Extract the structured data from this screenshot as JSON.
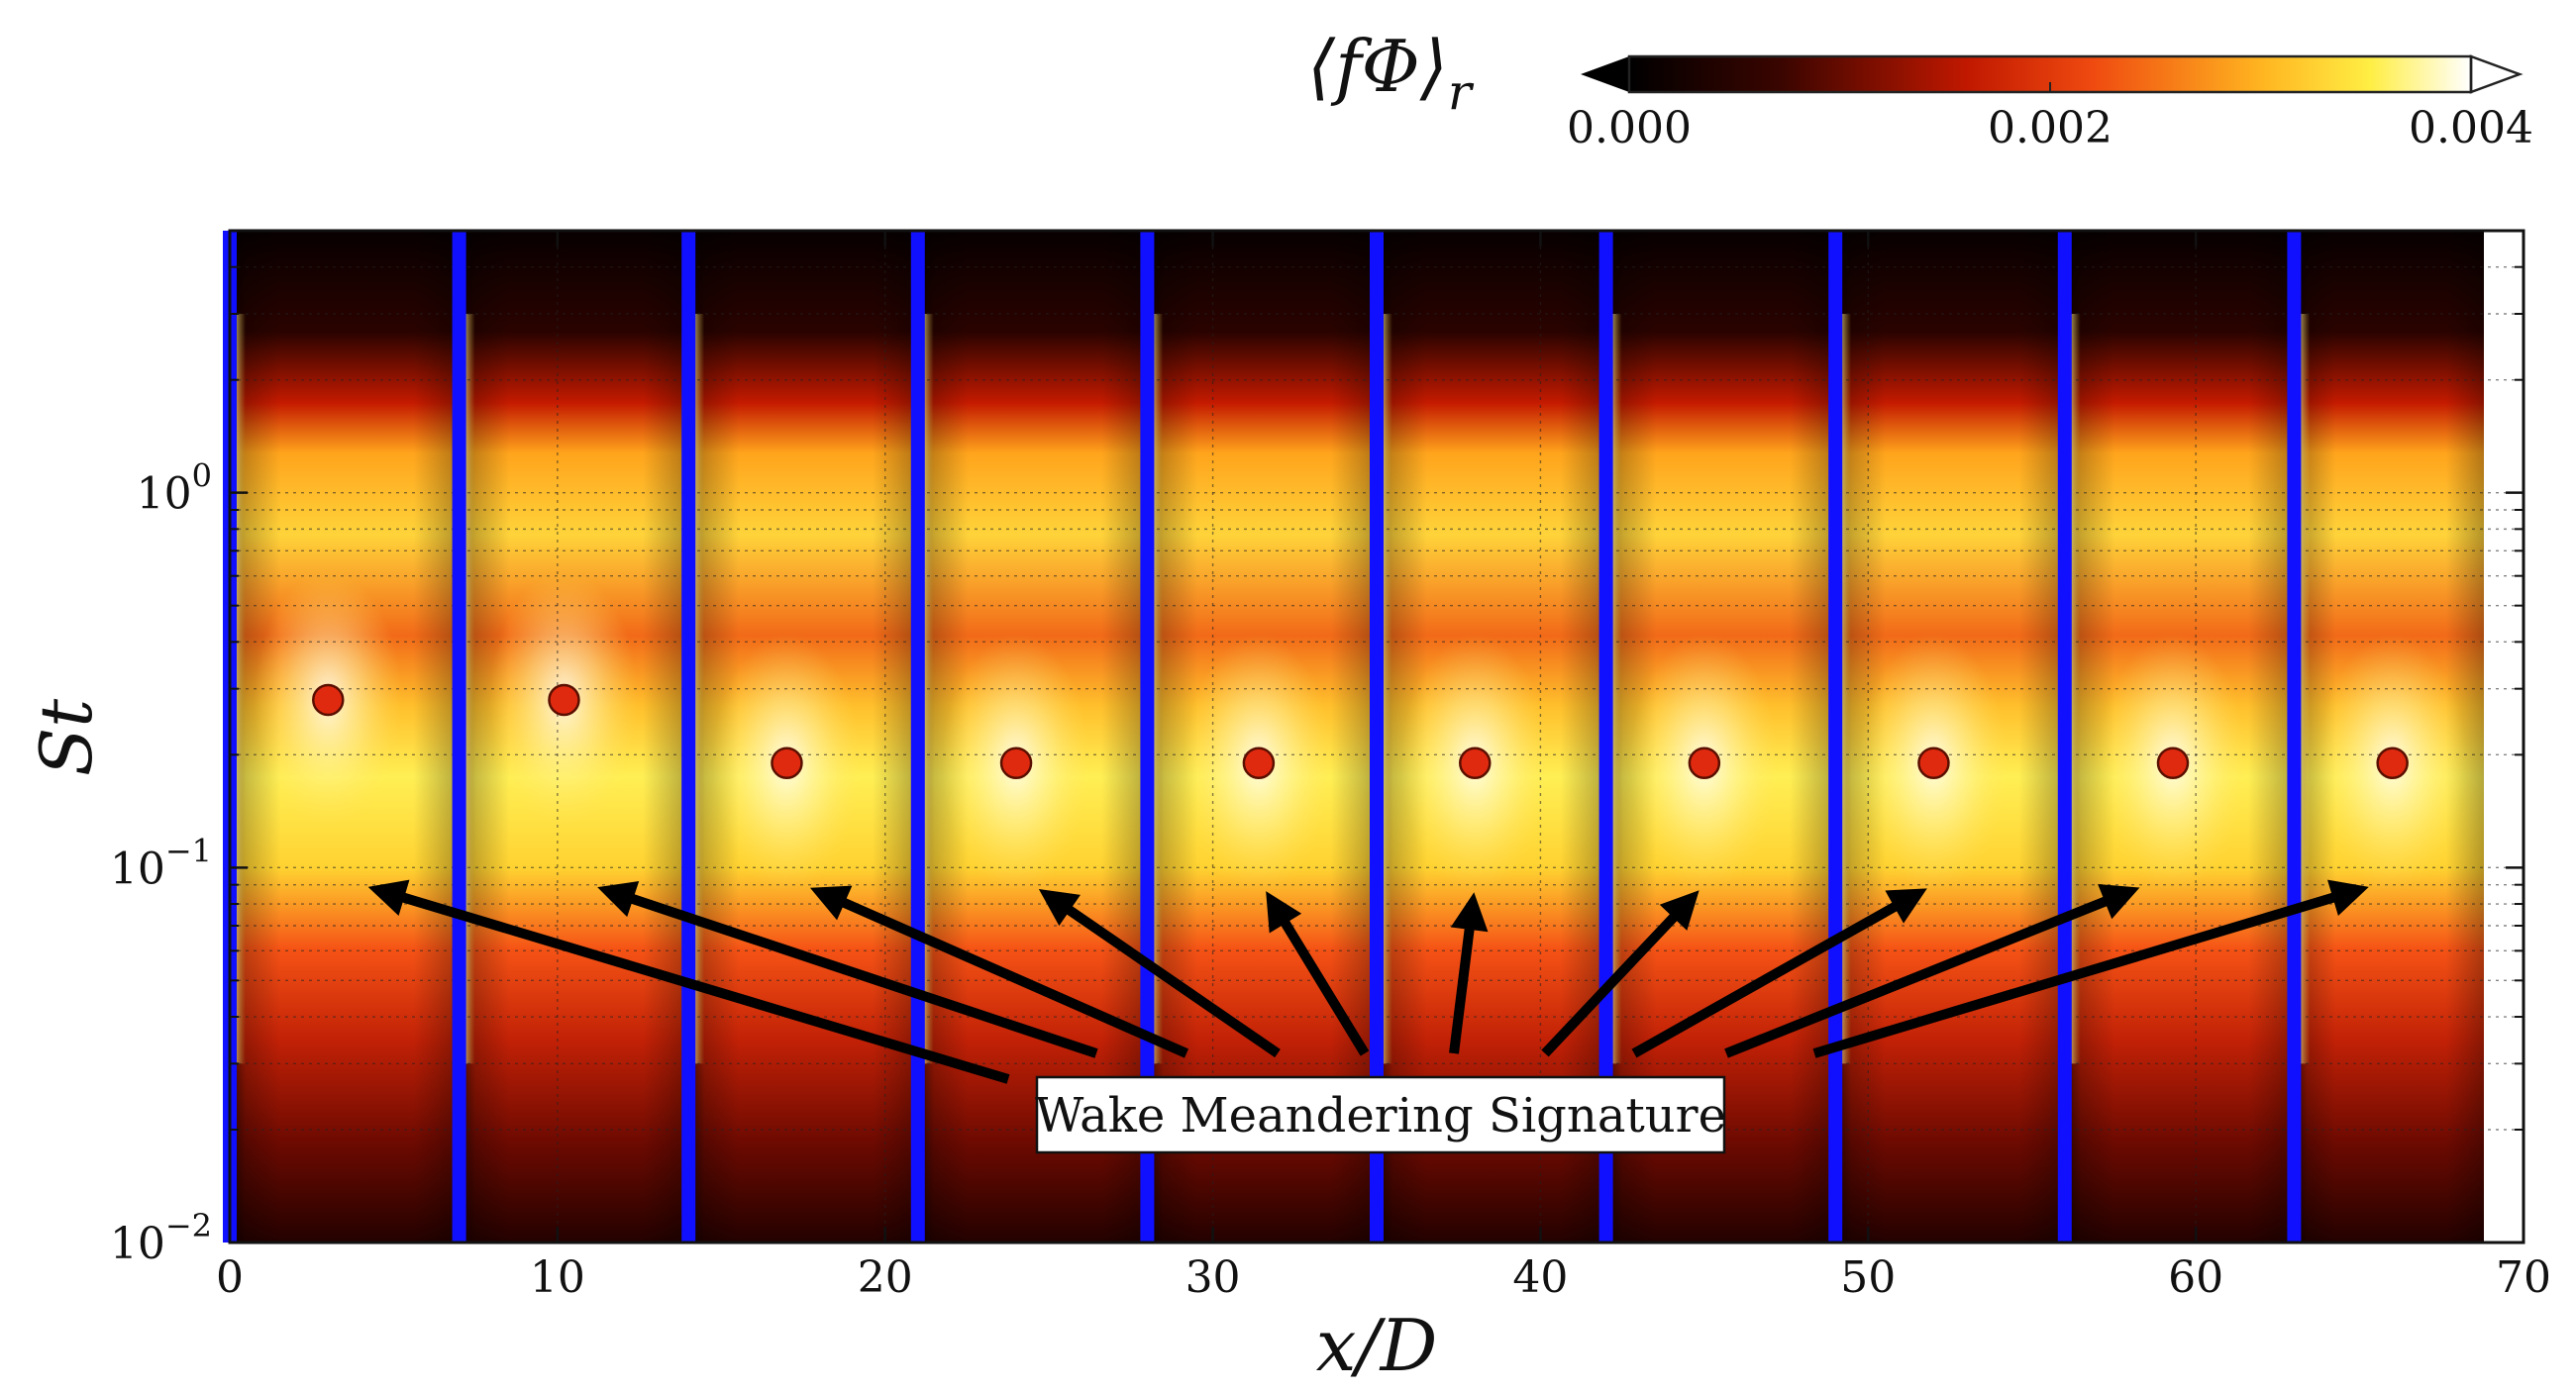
{
  "chart_data": {
    "type": "heatmap",
    "title": "",
    "xlabel": "x/D",
    "ylabel": "St",
    "xlim": [
      0,
      70
    ],
    "ylim": [
      0.01,
      5
    ],
    "yscale": "log",
    "x_ticks": [
      0,
      10,
      20,
      30,
      40,
      50,
      60,
      70
    ],
    "x_tick_labels": [
      "0",
      "10",
      "20",
      "30",
      "40",
      "50",
      "60",
      "70"
    ],
    "y_ticks": [
      0.01,
      0.1,
      1
    ],
    "y_tick_labels": [
      {
        "base": "10",
        "exp": "−2"
      },
      {
        "base": "10",
        "exp": "−1"
      },
      {
        "base": "10",
        "exp": "0"
      }
    ],
    "grid": true,
    "colorbar": {
      "label": "⟨fΦ⟩",
      "label_subscript": "r",
      "min": 0.0,
      "max": 0.004,
      "ticks": [
        0.0,
        0.002,
        0.004
      ],
      "tick_labels": [
        "0.000",
        "0.002",
        "0.004"
      ],
      "extend": "both",
      "colormap": "hot"
    },
    "turbine_positions_xD": [
      0,
      7,
      14,
      21,
      28,
      35,
      42,
      49,
      56,
      63
    ],
    "turbine_line_color": "#1010ff",
    "spectral_peaks": {
      "x": [
        3,
        10.2,
        17,
        24,
        31.4,
        38,
        45,
        52,
        59.3,
        66
      ],
      "St": [
        0.28,
        0.28,
        0.19,
        0.19,
        0.19,
        0.19,
        0.19,
        0.19,
        0.19,
        0.19
      ],
      "marker_color": "#e02a10"
    },
    "annotation": {
      "text": "Wake Meandering Signature",
      "arrow_targets_xD": [
        4,
        11,
        17.5,
        24.5,
        31.5,
        38,
        45,
        52,
        58.5,
        65.5
      ],
      "arrow_target_St": 0.09
    }
  }
}
